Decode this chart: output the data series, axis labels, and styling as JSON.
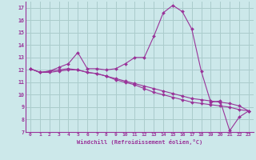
{
  "xlabel": "Windchill (Refroidissement éolien,°C)",
  "background_color": "#cce8ea",
  "grid_color": "#aacccc",
  "line_color": "#993399",
  "xlim": [
    -0.5,
    23.5
  ],
  "ylim": [
    7,
    17.5
  ],
  "yticks": [
    7,
    8,
    9,
    10,
    11,
    12,
    13,
    14,
    15,
    16,
    17
  ],
  "xticks": [
    0,
    1,
    2,
    3,
    4,
    5,
    6,
    7,
    8,
    9,
    10,
    11,
    12,
    13,
    14,
    15,
    16,
    17,
    18,
    19,
    20,
    21,
    22,
    23
  ],
  "curves": [
    [
      12.1,
      11.8,
      11.9,
      12.2,
      12.5,
      13.4,
      12.1,
      12.1,
      12.0,
      12.1,
      12.5,
      13.0,
      13.0,
      14.7,
      16.6,
      17.2,
      16.7,
      15.3,
      11.9,
      9.4,
      9.5,
      7.1,
      8.2,
      8.7
    ],
    [
      12.1,
      11.8,
      11.9,
      12.0,
      12.1,
      12.0,
      11.8,
      11.7,
      11.5,
      11.2,
      11.0,
      10.8,
      10.5,
      10.2,
      10.0,
      9.8,
      9.6,
      9.4,
      9.3,
      9.2,
      9.1,
      9.0,
      8.8,
      8.7
    ],
    [
      12.1,
      11.8,
      11.8,
      11.9,
      12.0,
      12.0,
      11.8,
      11.7,
      11.5,
      11.3,
      11.1,
      10.9,
      10.7,
      10.5,
      10.3,
      10.1,
      9.9,
      9.7,
      9.6,
      9.5,
      9.4,
      9.3,
      9.1,
      8.7
    ]
  ]
}
